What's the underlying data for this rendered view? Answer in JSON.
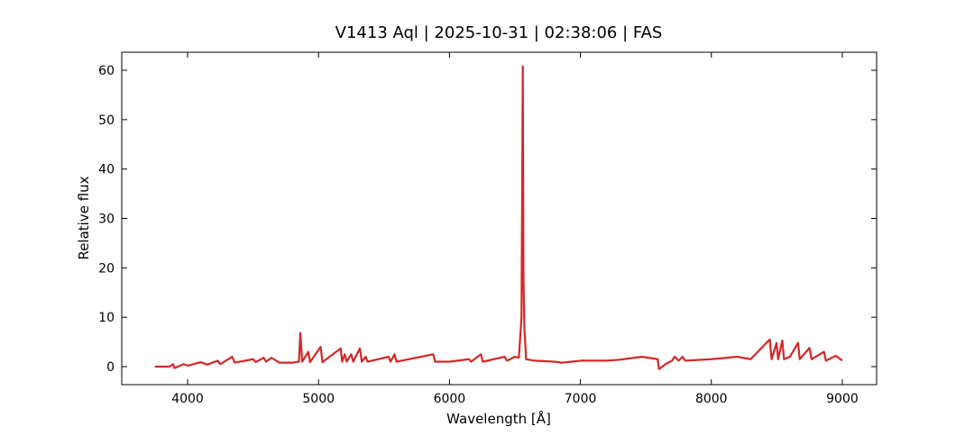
{
  "chart_data": {
    "type": "line",
    "title": "V1413 Aql | 2025-10-31 | 02:38:06 | FAS",
    "x_label": "Wavelength [Å]",
    "y_label": "Relative flux",
    "xlim": [
      3497,
      9262
    ],
    "ylim": [
      -3.65,
      63.65
    ],
    "xticks": [
      4000,
      5000,
      6000,
      7000,
      8000,
      9000
    ],
    "yticks": [
      0,
      10,
      20,
      30,
      40,
      50,
      60
    ],
    "series": [
      {
        "name": "V1413 Aql",
        "color": "#d62728",
        "x": [
          3750,
          3860,
          3890,
          3900,
          3970,
          4000,
          4101,
          4150,
          4230,
          4250,
          4340,
          4360,
          4500,
          4520,
          4580,
          4600,
          4640,
          4700,
          4800,
          4850,
          4861,
          4875,
          4922,
          4935,
          5016,
          5030,
          5169,
          5180,
          5200,
          5215,
          5250,
          5265,
          5316,
          5330,
          5360,
          5375,
          5535,
          5550,
          5580,
          5595,
          5876,
          5890,
          6000,
          6150,
          6165,
          6240,
          6255,
          6420,
          6440,
          6500,
          6530,
          6550,
          6560,
          6565,
          6572,
          6585,
          6650,
          6800,
          6860,
          7000,
          7200,
          7300,
          7470,
          7590,
          7600,
          7650,
          7700,
          7720,
          7750,
          7780,
          7800,
          8000,
          8200,
          8300,
          8446,
          8460,
          8498,
          8510,
          8542,
          8555,
          8600,
          8662,
          8675,
          8750,
          8765,
          8860,
          8875,
          8950,
          9000
        ],
        "values": [
          0.0,
          0.0,
          0.5,
          -0.3,
          0.5,
          0.2,
          0.9,
          0.4,
          1.2,
          0.5,
          2.0,
          0.8,
          1.5,
          0.9,
          1.8,
          1.0,
          1.8,
          0.8,
          0.8,
          1.0,
          6.8,
          1.0,
          3.0,
          0.9,
          4.0,
          0.9,
          3.7,
          1.0,
          2.5,
          1.0,
          2.5,
          1.0,
          3.7,
          1.0,
          2.0,
          1.0,
          2.0,
          1.0,
          2.5,
          1.0,
          2.5,
          1.0,
          1.0,
          1.5,
          1.0,
          2.5,
          1.0,
          2.0,
          1.2,
          2.0,
          1.8,
          10,
          60.8,
          18,
          8,
          1.5,
          1.2,
          1.0,
          0.8,
          1.2,
          1.2,
          1.4,
          2.0,
          1.5,
          -0.5,
          0.5,
          1.2,
          2.0,
          1.2,
          2.0,
          1.2,
          1.5,
          2.0,
          1.5,
          5.5,
          1.5,
          4.8,
          1.5,
          5.3,
          1.5,
          2.0,
          4.8,
          1.5,
          3.8,
          1.5,
          3.0,
          1.2,
          2.2,
          1.2
        ]
      }
    ]
  }
}
